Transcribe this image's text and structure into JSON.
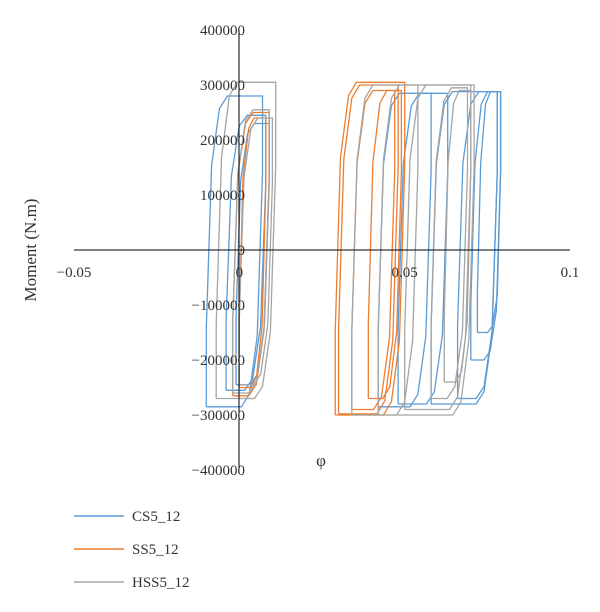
{
  "chart_data": {
    "type": "line",
    "title": "",
    "xlabel": "φ",
    "ylabel": "Moment (N.m)",
    "xlim": [
      -0.05,
      0.1
    ],
    "ylim": [
      -400000,
      400000
    ],
    "x_ticks": [
      "−0.05",
      "0",
      "0.05",
      "0.1"
    ],
    "y_ticks": [
      "400000",
      "300000",
      "200000",
      "100000",
      "0",
      "−100000",
      "−200000",
      "−300000",
      "−400000"
    ],
    "grid": false,
    "legend_position": "bottom-left",
    "series": [
      {
        "name": "CS5_12",
        "color": "#5B9BD5",
        "loops": [
          {
            "xmin": -0.01,
            "xmax": 0.007,
            "mmax": 280000,
            "mmin": -285000
          },
          {
            "xmin": -0.004,
            "xmax": 0.008,
            "mmax": 245000,
            "mmin": -255000
          },
          {
            "xmin": -0.001,
            "xmax": 0.009,
            "mmax": 230000,
            "mmin": -245000
          },
          {
            "xmin": 0.042,
            "xmax": 0.058,
            "mmax": 285000,
            "mmin": -285000
          },
          {
            "xmin": 0.048,
            "xmax": 0.063,
            "mmax": 285000,
            "mmin": -280000
          },
          {
            "xmin": 0.058,
            "xmax": 0.078,
            "mmax": 288000,
            "mmin": -280000
          },
          {
            "xmin": 0.066,
            "xmax": 0.078,
            "mmax": 288000,
            "mmin": -270000
          },
          {
            "xmin": 0.07,
            "xmax": 0.079,
            "mmax": 288000,
            "mmin": -200000
          },
          {
            "xmin": 0.072,
            "xmax": 0.079,
            "mmax": 288000,
            "mmin": -150000
          }
        ]
      },
      {
        "name": "SS5_12",
        "color": "#ED7D31",
        "loops": [
          {
            "xmin": -0.002,
            "xmax": 0.009,
            "mmax": 250000,
            "mmin": -265000
          },
          {
            "xmin": 0.0,
            "xmax": 0.008,
            "mmax": 240000,
            "mmin": -250000
          },
          {
            "xmin": 0.029,
            "xmax": 0.05,
            "mmax": 305000,
            "mmin": -300000
          },
          {
            "xmin": 0.03,
            "xmax": 0.048,
            "mmax": 300000,
            "mmin": -298000
          },
          {
            "xmin": 0.034,
            "xmax": 0.047,
            "mmax": 290000,
            "mmin": -290000
          },
          {
            "xmin": 0.039,
            "xmax": 0.049,
            "mmax": 290000,
            "mmin": -270000
          }
        ]
      },
      {
        "name": "HSS5_12",
        "color": "#A5A5A5",
        "loops": [
          {
            "xmin": -0.007,
            "xmax": 0.011,
            "mmax": 305000,
            "mmin": -270000
          },
          {
            "xmin": -0.002,
            "xmax": 0.009,
            "mmax": 255000,
            "mmin": -260000
          },
          {
            "xmin": 0.0,
            "xmax": 0.01,
            "mmax": 240000,
            "mmin": -245000
          },
          {
            "xmin": 0.034,
            "xmax": 0.054,
            "mmax": 300000,
            "mmin": -300000
          },
          {
            "xmin": 0.042,
            "xmax": 0.071,
            "mmax": 300000,
            "mmin": -300000
          },
          {
            "xmin": 0.05,
            "xmax": 0.07,
            "mmax": 300000,
            "mmin": -290000
          },
          {
            "xmin": 0.058,
            "xmax": 0.069,
            "mmax": 295000,
            "mmin": -270000
          },
          {
            "xmin": 0.062,
            "xmax": 0.07,
            "mmax": 290000,
            "mmin": -240000
          }
        ]
      }
    ]
  }
}
